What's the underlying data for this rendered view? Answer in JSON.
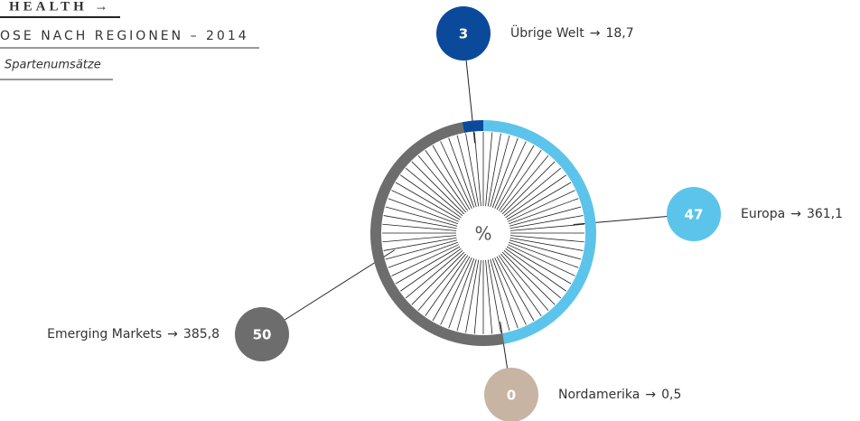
{
  "header": {
    "title": "HEALTH →",
    "subtitle": "OSE NACH REGIONEN – 2014",
    "note": "Spartenumsätze"
  },
  "chart_data": {
    "type": "pie",
    "center_label": "%",
    "separator": "→",
    "categories": [
      "Übrige Welt",
      "Europa",
      "Nordamerika",
      "Emerging Markets"
    ],
    "values": [
      3,
      47,
      0,
      50
    ],
    "amounts": [
      18.7,
      361.1,
      0.5,
      385.8
    ],
    "amount_labels": [
      "18,7",
      "361,1",
      "0,5",
      "385,8"
    ],
    "colors": [
      "#0b4a9b",
      "#5cc4ea",
      "#c7b4a2",
      "#6d6d6d"
    ]
  }
}
